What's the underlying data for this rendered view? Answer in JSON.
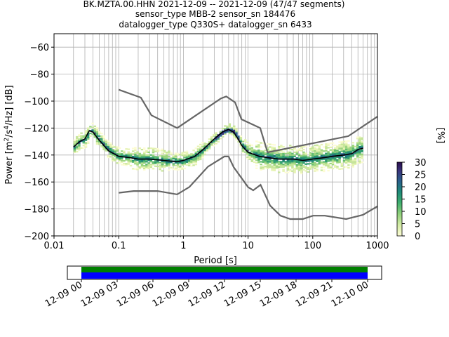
{
  "header": {
    "title_lines": [
      "BK.MZTA.00.HHN   2021-12-09 -- 2021-12-09  (47/47 segments)",
      "sensor_type MBB-2 sensor_sn 184476",
      "datalogger_type Q330S+ datalogger_sn 6433"
    ]
  },
  "chart_data": [
    {
      "type": "heatmap",
      "x_axis": {
        "label": "Period [s]",
        "scale": "log",
        "range": [
          0.01,
          1000
        ],
        "ticks": [
          "0.01",
          "0.1",
          "1",
          "10",
          "100",
          "1000"
        ]
      },
      "y_axis": {
        "label_parts": [
          "Power [m",
          "2",
          "/s",
          "4",
          "/Hz] [dB]"
        ],
        "range": [
          -200,
          -50
        ],
        "ticks": [
          "−60",
          "−80",
          "−100",
          "−120",
          "−140",
          "−160",
          "−180",
          "−200"
        ]
      },
      "grid": true,
      "colorbar": {
        "label": "[%]",
        "range": [
          0,
          30
        ],
        "ticks": [
          "0",
          "5",
          "10",
          "15",
          "20",
          "25",
          "30"
        ]
      },
      "series": [
        {
          "name": "NHNM",
          "color": "#666666",
          "x": [
            0.1,
            0.22,
            0.32,
            0.8,
            3.8,
            4.6,
            6.3,
            7.9,
            15.4,
            20,
            354.8,
            1000
          ],
          "y": [
            -91.5,
            -97.4,
            -110.5,
            -120.0,
            -98.0,
            -96.5,
            -101.0,
            -113.5,
            -120.0,
            -138.0,
            -126.0,
            -111.5
          ]
        },
        {
          "name": "NLNM",
          "color": "#666666",
          "x": [
            0.1,
            0.17,
            0.4,
            0.8,
            1.24,
            2.4,
            4.3,
            5.0,
            6.0,
            10.0,
            12.0,
            15.6,
            21.9,
            31.6,
            45.0,
            70.0,
            101.0,
            154.0,
            328.0,
            600.0,
            1000.0
          ],
          "y": [
            -168.0,
            -166.7,
            -166.7,
            -169.2,
            -163.7,
            -148.6,
            -141.1,
            -141.1,
            -149.0,
            -163.8,
            -166.2,
            -162.1,
            -177.5,
            -185.0,
            -187.5,
            -187.5,
            -185.0,
            -185.0,
            -187.5,
            -184.4,
            -178.0
          ]
        },
        {
          "name": "mode",
          "color": "#000000",
          "x": [
            0.02,
            0.025,
            0.03,
            0.035,
            0.04,
            0.05,
            0.07,
            0.1,
            0.15,
            0.2,
            0.3,
            0.5,
            0.8,
            1.0,
            1.5,
            2.0,
            3.0,
            4.0,
            5.0,
            6.0,
            7.0,
            8.0,
            10.0,
            15.0,
            20.0,
            30.0,
            50.0,
            70.0,
            100.0,
            150.0,
            200.0,
            300.0,
            400.0,
            500.0,
            600.0
          ],
          "y": [
            -134,
            -130,
            -128,
            -122,
            -123,
            -129,
            -137,
            -141,
            -142,
            -143,
            -143,
            -144,
            -145,
            -144,
            -141,
            -136,
            -128,
            -123,
            -121,
            -123,
            -128,
            -133,
            -138,
            -141,
            -142,
            -143,
            -143,
            -144,
            -143,
            -142,
            -141,
            -140,
            -139,
            -136,
            -135
          ]
        }
      ],
      "density_note_percent_max": 30
    },
    {
      "type": "table",
      "time_axis": {
        "ticks": [
          "12-09 00",
          "12-09 03",
          "12-09 06",
          "12-09 09",
          "12-09 12",
          "12-09 15",
          "12-09 18",
          "12-09 21",
          "12-10 00"
        ]
      },
      "bars": [
        {
          "color": "#008000",
          "start": "12-09 00",
          "end": "12-10 00"
        },
        {
          "color": "#0000ff",
          "start": "12-09 00",
          "end": "12-10 00"
        }
      ]
    }
  ]
}
